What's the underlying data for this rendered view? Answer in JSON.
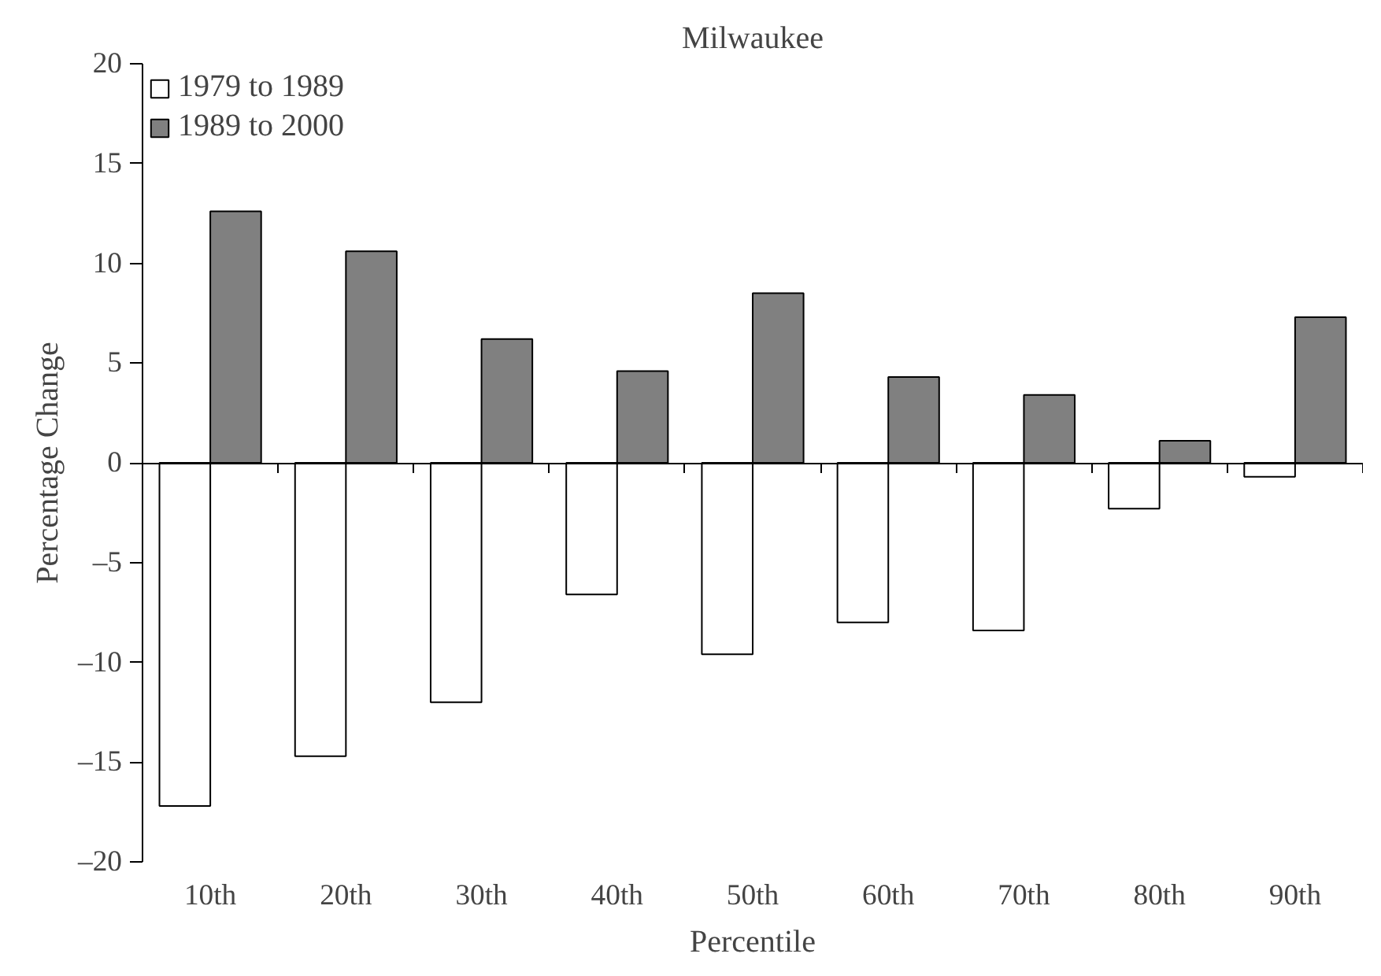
{
  "chart_data": {
    "type": "bar",
    "title": "Milwaukee",
    "xlabel": "Percentile",
    "ylabel": "Percentage Change",
    "categories": [
      "10th",
      "20th",
      "30th",
      "40th",
      "50th",
      "60th",
      "70th",
      "80th",
      "90th"
    ],
    "series": [
      {
        "name": "1979 to 1989",
        "color": "#ffffff",
        "values": [
          -17.2,
          -14.7,
          -12.0,
          -6.6,
          -9.6,
          -8.0,
          -8.4,
          -2.3,
          -0.7
        ]
      },
      {
        "name": "1989 to 2000",
        "color": "#808080",
        "values": [
          12.6,
          10.6,
          6.2,
          4.6,
          8.5,
          4.3,
          3.4,
          1.1,
          7.3
        ]
      }
    ],
    "ylim": [
      -20,
      20
    ],
    "yticks": [
      20,
      15,
      10,
      5,
      0,
      {
        "value": -5,
        "label": "–5"
      },
      {
        "value": -10,
        "label": "–10"
      },
      {
        "value": -15,
        "label": "–15"
      },
      {
        "value": -20,
        "label": "–20"
      }
    ],
    "legend": "top left"
  }
}
